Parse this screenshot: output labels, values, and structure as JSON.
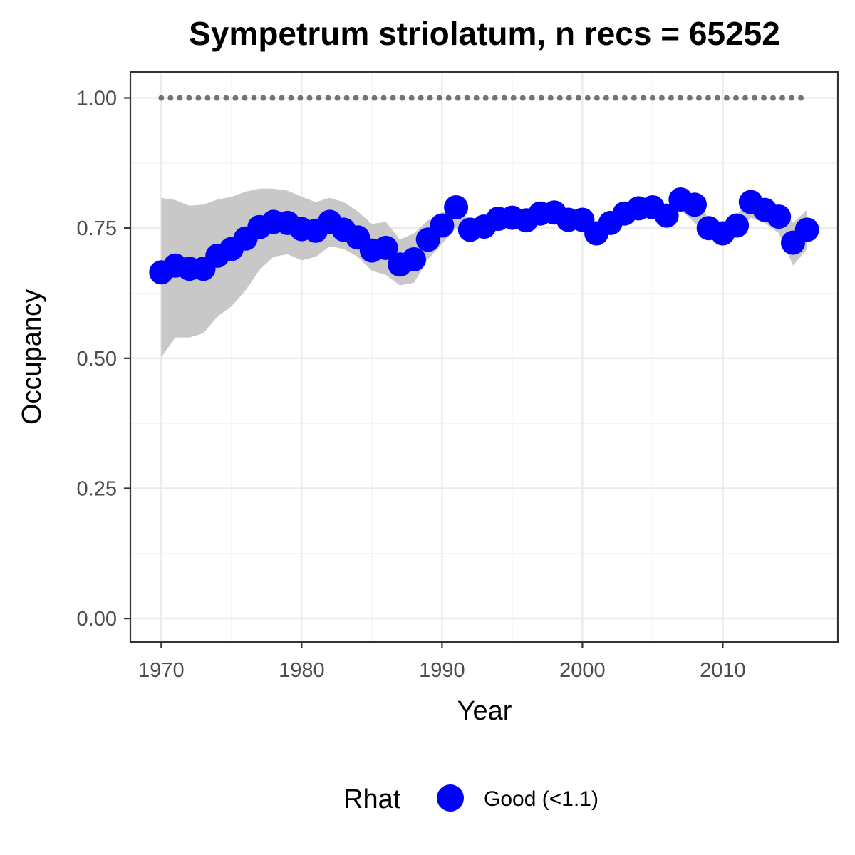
{
  "chart_data": {
    "type": "line",
    "title": "Sympetrum striolatum, n recs = 65252",
    "xlabel": "Year",
    "ylabel": "Occupancy",
    "xlim": [
      1967.8,
      2018.2
    ],
    "ylim": [
      -0.045,
      1.05
    ],
    "x_ticks": [
      1970,
      1980,
      1990,
      2000,
      2010
    ],
    "x_tick_labels": [
      "1970",
      "1980",
      "1990",
      "2000",
      "2010"
    ],
    "y_ticks": [
      0,
      0.25,
      0.5,
      0.75,
      1.0
    ],
    "y_tick_labels": [
      "0.00",
      "0.25",
      "0.50",
      "0.75",
      "1.00"
    ],
    "grid": true,
    "legend_position": "bottom",
    "reference_line": {
      "y": 1.0,
      "style": "dotted",
      "color": "#737373"
    },
    "series": [
      {
        "values": [
          [
            1970,
            0.665
          ],
          [
            1971,
            0.678
          ],
          [
            1972,
            0.672
          ],
          [
            1973,
            0.672
          ],
          [
            1974,
            0.697
          ],
          [
            1975,
            0.71
          ],
          [
            1976,
            0.73
          ],
          [
            1977,
            0.752
          ],
          [
            1978,
            0.762
          ],
          [
            1979,
            0.76
          ],
          [
            1980,
            0.748
          ],
          [
            1981,
            0.745
          ],
          [
            1982,
            0.762
          ],
          [
            1983,
            0.747
          ],
          [
            1984,
            0.732
          ],
          [
            1985,
            0.707
          ],
          [
            1986,
            0.712
          ],
          [
            1987,
            0.68
          ],
          [
            1988,
            0.69
          ],
          [
            1989,
            0.728
          ],
          [
            1990,
            0.755
          ],
          [
            1991,
            0.79
          ],
          [
            1992,
            0.747
          ],
          [
            1993,
            0.753
          ],
          [
            1994,
            0.768
          ],
          [
            1995,
            0.77
          ],
          [
            1996,
            0.765
          ],
          [
            1997,
            0.778
          ],
          [
            1998,
            0.78
          ],
          [
            1999,
            0.766
          ],
          [
            2000,
            0.766
          ],
          [
            2001,
            0.74
          ],
          [
            2002,
            0.76
          ],
          [
            2003,
            0.778
          ],
          [
            2004,
            0.788
          ],
          [
            2005,
            0.79
          ],
          [
            2006,
            0.774
          ],
          [
            2007,
            0.805
          ],
          [
            2008,
            0.795
          ],
          [
            2009,
            0.75
          ],
          [
            2010,
            0.74
          ],
          [
            2011,
            0.755
          ],
          [
            2012,
            0.8
          ],
          [
            2013,
            0.785
          ],
          [
            2014,
            0.772
          ],
          [
            2015,
            0.722
          ],
          [
            2016,
            0.747
          ]
        ],
        "ci_lower": [
          [
            1970,
            0.502
          ],
          [
            1971,
            0.54
          ],
          [
            1972,
            0.54
          ],
          [
            1973,
            0.548
          ],
          [
            1974,
            0.58
          ],
          [
            1975,
            0.6
          ],
          [
            1976,
            0.63
          ],
          [
            1977,
            0.67
          ],
          [
            1978,
            0.695
          ],
          [
            1979,
            0.7
          ],
          [
            1980,
            0.688
          ],
          [
            1981,
            0.695
          ],
          [
            1982,
            0.715
          ],
          [
            1983,
            0.71
          ],
          [
            1984,
            0.695
          ],
          [
            1985,
            0.668
          ],
          [
            1986,
            0.66
          ],
          [
            1987,
            0.64
          ],
          [
            1988,
            0.645
          ],
          [
            1989,
            0.69
          ],
          [
            1990,
            0.72
          ],
          [
            1991,
            0.75
          ],
          [
            1992,
            0.73
          ],
          [
            1993,
            0.738
          ],
          [
            1994,
            0.75
          ],
          [
            1995,
            0.752
          ],
          [
            1996,
            0.75
          ],
          [
            1997,
            0.76
          ],
          [
            1998,
            0.762
          ],
          [
            1999,
            0.75
          ],
          [
            2000,
            0.748
          ],
          [
            2001,
            0.73
          ],
          [
            2002,
            0.745
          ],
          [
            2003,
            0.762
          ],
          [
            2004,
            0.77
          ],
          [
            2005,
            0.772
          ],
          [
            2006,
            0.76
          ],
          [
            2007,
            0.785
          ],
          [
            2008,
            0.76
          ],
          [
            2009,
            0.735
          ],
          [
            2010,
            0.73
          ],
          [
            2011,
            0.74
          ],
          [
            2012,
            0.77
          ],
          [
            2013,
            0.76
          ],
          [
            2014,
            0.74
          ],
          [
            2015,
            0.678
          ],
          [
            2016,
            0.71
          ]
        ],
        "ci_upper": [
          [
            1970,
            0.808
          ],
          [
            1971,
            0.804
          ],
          [
            1972,
            0.793
          ],
          [
            1973,
            0.795
          ],
          [
            1974,
            0.805
          ],
          [
            1975,
            0.81
          ],
          [
            1976,
            0.82
          ],
          [
            1977,
            0.826
          ],
          [
            1978,
            0.826
          ],
          [
            1979,
            0.822
          ],
          [
            1980,
            0.81
          ],
          [
            1981,
            0.8
          ],
          [
            1982,
            0.808
          ],
          [
            1983,
            0.8
          ],
          [
            1984,
            0.782
          ],
          [
            1985,
            0.758
          ],
          [
            1986,
            0.762
          ],
          [
            1987,
            0.728
          ],
          [
            1988,
            0.74
          ],
          [
            1989,
            0.765
          ],
          [
            1990,
            0.78
          ],
          [
            1991,
            0.79
          ],
          [
            1992,
            0.764
          ],
          [
            1993,
            0.77
          ],
          [
            1994,
            0.785
          ],
          [
            1995,
            0.788
          ],
          [
            1996,
            0.782
          ],
          [
            1997,
            0.795
          ],
          [
            1998,
            0.797
          ],
          [
            1999,
            0.782
          ],
          [
            2000,
            0.782
          ],
          [
            2001,
            0.76
          ],
          [
            2002,
            0.776
          ],
          [
            2003,
            0.795
          ],
          [
            2004,
            0.805
          ],
          [
            2005,
            0.806
          ],
          [
            2006,
            0.79
          ],
          [
            2007,
            0.82
          ],
          [
            2008,
            0.812
          ],
          [
            2009,
            0.768
          ],
          [
            2010,
            0.755
          ],
          [
            2011,
            0.772
          ],
          [
            2012,
            0.82
          ],
          [
            2013,
            0.804
          ],
          [
            2014,
            0.795
          ],
          [
            2015,
            0.76
          ],
          [
            2016,
            0.785
          ]
        ],
        "legend_group": "Good (<1.1)",
        "color": "#0000ff"
      }
    ],
    "ci_band_color": "#c8c8c8",
    "legend": {
      "title": "Rhat",
      "entries": [
        {
          "label": "Good (<1.1)",
          "color": "#0000ff"
        }
      ]
    }
  }
}
